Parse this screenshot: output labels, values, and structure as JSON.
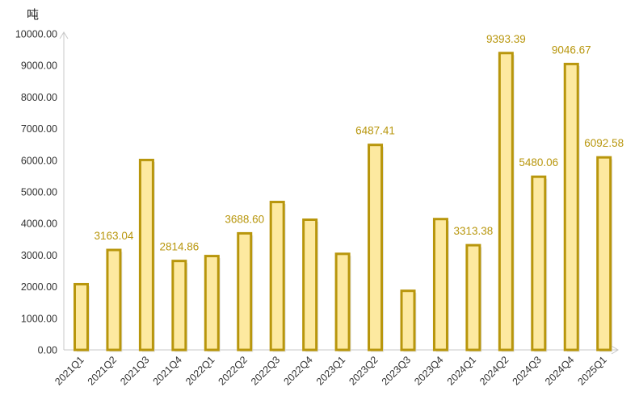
{
  "chart_data": {
    "type": "bar",
    "unit": "吨",
    "categories": [
      "2021Q1",
      "2021Q2",
      "2021Q3",
      "2021Q4",
      "2022Q1",
      "2022Q2",
      "2022Q3",
      "2022Q4",
      "2023Q1",
      "2023Q2",
      "2023Q3",
      "2023Q4",
      "2024Q1",
      "2024Q2",
      "2024Q3",
      "2024Q4",
      "2025Q1"
    ],
    "values": [
      2080,
      3163.04,
      6010,
      2814.86,
      2970,
      3688.6,
      4680,
      4120,
      3040,
      6487.41,
      1870,
      4140,
      3313.38,
      9393.39,
      5480.06,
      9046.67,
      6092.58
    ],
    "data_labels": [
      "",
      "3163.04",
      "",
      "2814.86",
      "",
      "3688.60",
      "",
      "",
      "",
      "6487.41",
      "",
      "",
      "3313.38",
      "9393.39",
      "5480.06",
      "9046.67",
      "6092.58"
    ],
    "ylim": [
      0,
      10000
    ],
    "yticks": [
      "0.00",
      "1000.00",
      "2000.00",
      "3000.00",
      "4000.00",
      "5000.00",
      "6000.00",
      "7000.00",
      "8000.00",
      "9000.00",
      "10000.00"
    ],
    "grid": false,
    "legend": "none",
    "colors": {
      "bar_fill": "#fde9a0",
      "bar_stroke": "#b8960c",
      "label": "#b8960c",
      "axis": "#c8c8c8"
    }
  }
}
